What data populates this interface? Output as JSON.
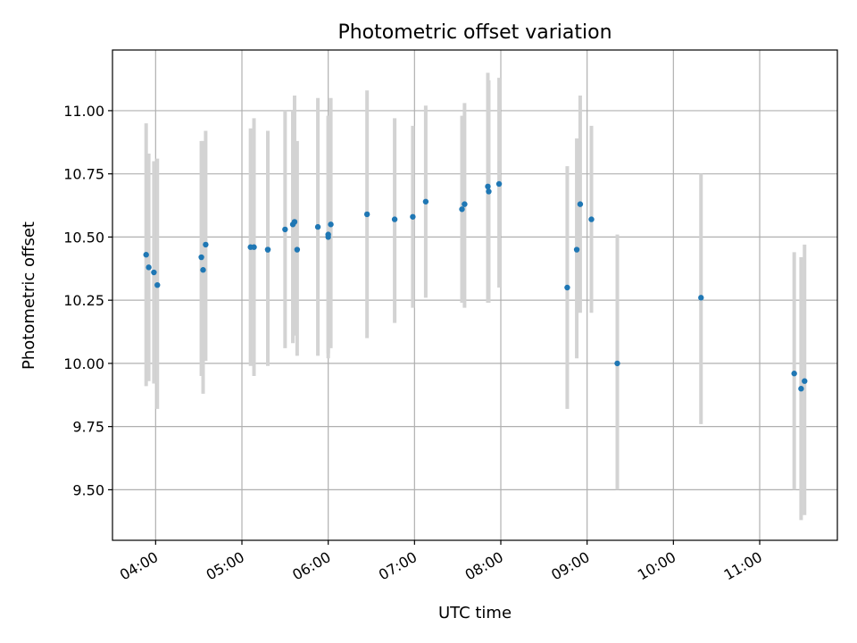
{
  "chart_data": {
    "type": "scatter",
    "title": "Photometric offset variation",
    "xlabel": "UTC time",
    "ylabel": "Photometric offset",
    "x_unit": "hours UTC",
    "xlim": [
      3.5,
      11.9
    ],
    "ylim": [
      9.3,
      11.24
    ],
    "grid": true,
    "marker_color": "#1f77b4",
    "errorbar_color": "#d3d3d3",
    "x_ticks": [
      {
        "value": 4,
        "label": "04:00"
      },
      {
        "value": 5,
        "label": "05:00"
      },
      {
        "value": 6,
        "label": "06:00"
      },
      {
        "value": 7,
        "label": "07:00"
      },
      {
        "value": 8,
        "label": "08:00"
      },
      {
        "value": 9,
        "label": "09:00"
      },
      {
        "value": 10,
        "label": "10:00"
      },
      {
        "value": 11,
        "label": "11:00"
      }
    ],
    "y_ticks": [
      {
        "value": 9.5,
        "label": "9.50"
      },
      {
        "value": 9.75,
        "label": "9.75"
      },
      {
        "value": 10.0,
        "label": "10.00"
      },
      {
        "value": 10.25,
        "label": "10.25"
      },
      {
        "value": 10.5,
        "label": "10.50"
      },
      {
        "value": 10.75,
        "label": "10.75"
      },
      {
        "value": 11.0,
        "label": "11.00"
      }
    ],
    "points": [
      {
        "x": 3.89,
        "y": 10.43,
        "ylo": 9.91,
        "yhi": 10.95
      },
      {
        "x": 3.92,
        "y": 10.38,
        "ylo": 9.93,
        "yhi": 10.83
      },
      {
        "x": 3.98,
        "y": 10.36,
        "ylo": 9.92,
        "yhi": 10.8
      },
      {
        "x": 4.02,
        "y": 10.31,
        "ylo": 9.82,
        "yhi": 10.81
      },
      {
        "x": 4.53,
        "y": 10.42,
        "ylo": 9.95,
        "yhi": 10.88
      },
      {
        "x": 4.55,
        "y": 10.37,
        "ylo": 9.88,
        "yhi": 10.88
      },
      {
        "x": 4.58,
        "y": 10.47,
        "ylo": 10.01,
        "yhi": 10.92
      },
      {
        "x": 5.1,
        "y": 10.46,
        "ylo": 9.99,
        "yhi": 10.93
      },
      {
        "x": 5.14,
        "y": 10.46,
        "ylo": 9.95,
        "yhi": 10.97
      },
      {
        "x": 5.3,
        "y": 10.45,
        "ylo": 9.99,
        "yhi": 10.92
      },
      {
        "x": 5.3,
        "y": 10.45,
        "ylo": 10.0,
        "yhi": 10.9
      },
      {
        "x": 5.5,
        "y": 10.53,
        "ylo": 10.06,
        "yhi": 11.0
      },
      {
        "x": 5.59,
        "y": 10.55,
        "ylo": 10.08,
        "yhi": 11.0
      },
      {
        "x": 5.61,
        "y": 10.56,
        "ylo": 10.11,
        "yhi": 11.06
      },
      {
        "x": 5.64,
        "y": 10.45,
        "ylo": 10.03,
        "yhi": 10.88
      },
      {
        "x": 5.88,
        "y": 10.54,
        "ylo": 10.03,
        "yhi": 11.05
      },
      {
        "x": 6.0,
        "y": 10.51,
        "ylo": 10.02,
        "yhi": 10.98
      },
      {
        "x": 6.0,
        "y": 10.5,
        "ylo": 10.04,
        "yhi": 10.98
      },
      {
        "x": 6.03,
        "y": 10.55,
        "ylo": 10.06,
        "yhi": 11.05
      },
      {
        "x": 6.45,
        "y": 10.59,
        "ylo": 10.1,
        "yhi": 11.08
      },
      {
        "x": 6.77,
        "y": 10.57,
        "ylo": 10.16,
        "yhi": 10.97
      },
      {
        "x": 6.98,
        "y": 10.58,
        "ylo": 10.22,
        "yhi": 10.94
      },
      {
        "x": 7.13,
        "y": 10.64,
        "ylo": 10.26,
        "yhi": 11.02
      },
      {
        "x": 7.55,
        "y": 10.61,
        "ylo": 10.24,
        "yhi": 10.98
      },
      {
        "x": 7.58,
        "y": 10.63,
        "ylo": 10.22,
        "yhi": 11.03
      },
      {
        "x": 7.85,
        "y": 10.7,
        "ylo": 10.24,
        "yhi": 11.15
      },
      {
        "x": 7.86,
        "y": 10.68,
        "ylo": 10.24,
        "yhi": 11.12
      },
      {
        "x": 7.98,
        "y": 10.71,
        "ylo": 10.3,
        "yhi": 11.13
      },
      {
        "x": 8.77,
        "y": 10.3,
        "ylo": 9.82,
        "yhi": 10.78
      },
      {
        "x": 8.88,
        "y": 10.45,
        "ylo": 10.02,
        "yhi": 10.89
      },
      {
        "x": 8.92,
        "y": 10.63,
        "ylo": 10.2,
        "yhi": 11.06
      },
      {
        "x": 9.05,
        "y": 10.57,
        "ylo": 10.2,
        "yhi": 10.94
      },
      {
        "x": 9.35,
        "y": 10.0,
        "ylo": 9.5,
        "yhi": 10.51
      },
      {
        "x": 10.32,
        "y": 10.26,
        "ylo": 9.76,
        "yhi": 10.75
      },
      {
        "x": 11.4,
        "y": 9.96,
        "ylo": 9.5,
        "yhi": 10.44
      },
      {
        "x": 11.48,
        "y": 9.9,
        "ylo": 9.38,
        "yhi": 10.42
      },
      {
        "x": 11.52,
        "y": 9.93,
        "ylo": 9.4,
        "yhi": 10.47
      }
    ]
  }
}
